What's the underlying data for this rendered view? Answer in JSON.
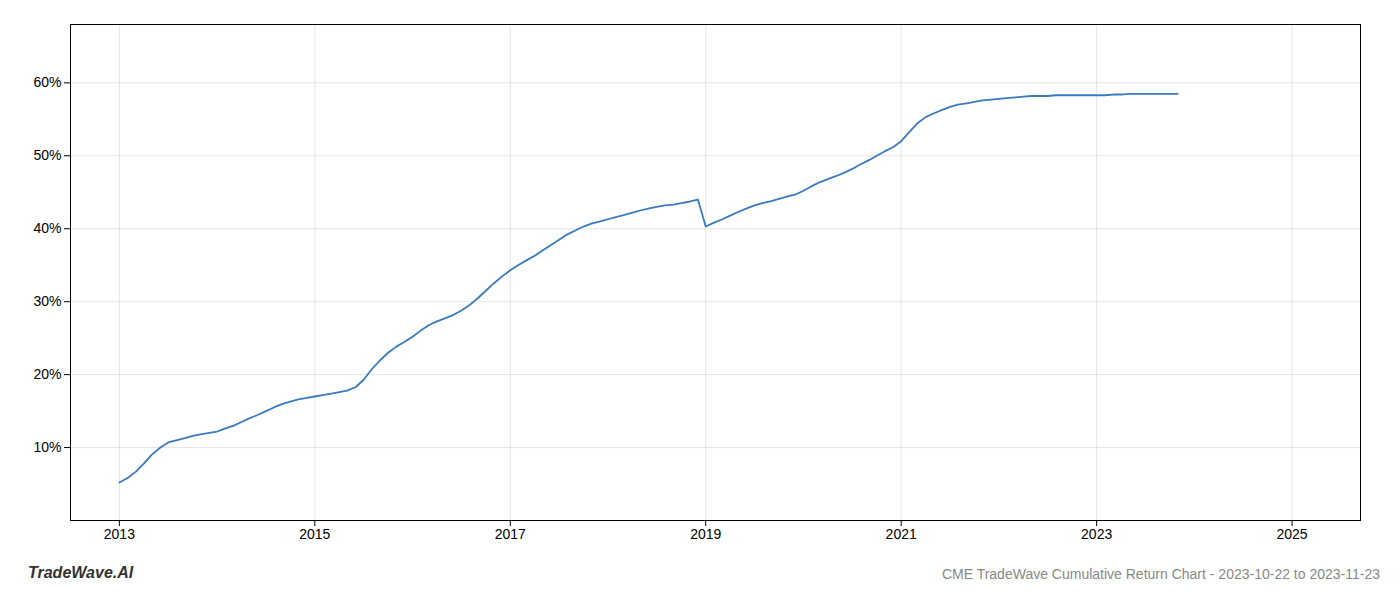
{
  "chart_data": {
    "type": "line",
    "title": "",
    "x": [
      2013.0,
      2013.08,
      2013.17,
      2013.25,
      2013.33,
      2013.42,
      2013.5,
      2013.58,
      2013.67,
      2013.75,
      2013.83,
      2013.92,
      2014.0,
      2014.08,
      2014.17,
      2014.25,
      2014.33,
      2014.42,
      2014.5,
      2014.58,
      2014.67,
      2014.75,
      2014.83,
      2014.92,
      2015.0,
      2015.08,
      2015.17,
      2015.25,
      2015.33,
      2015.42,
      2015.5,
      2015.58,
      2015.67,
      2015.75,
      2015.83,
      2015.92,
      2016.0,
      2016.08,
      2016.17,
      2016.25,
      2016.33,
      2016.42,
      2016.5,
      2016.58,
      2016.67,
      2016.75,
      2016.83,
      2016.92,
      2017.0,
      2017.08,
      2017.17,
      2017.25,
      2017.33,
      2017.42,
      2017.5,
      2017.58,
      2017.67,
      2017.75,
      2017.83,
      2017.92,
      2018.0,
      2018.08,
      2018.17,
      2018.25,
      2018.33,
      2018.42,
      2018.5,
      2018.58,
      2018.67,
      2018.75,
      2018.83,
      2018.92,
      2019.0,
      2019.08,
      2019.17,
      2019.25,
      2019.33,
      2019.42,
      2019.5,
      2019.58,
      2019.67,
      2019.75,
      2019.83,
      2019.92,
      2020.0,
      2020.08,
      2020.17,
      2020.25,
      2020.33,
      2020.42,
      2020.5,
      2020.58,
      2020.67,
      2020.75,
      2020.83,
      2020.92,
      2021.0,
      2021.08,
      2021.17,
      2021.25,
      2021.33,
      2021.42,
      2021.5,
      2021.58,
      2021.67,
      2021.75,
      2021.83,
      2021.92,
      2022.0,
      2022.08,
      2022.17,
      2022.25,
      2022.33,
      2022.42,
      2022.5,
      2022.58,
      2022.67,
      2022.75,
      2022.83,
      2022.92,
      2023.0,
      2023.08,
      2023.17,
      2023.25,
      2023.33,
      2023.42,
      2023.5,
      2023.58,
      2023.67,
      2023.75,
      2023.83
    ],
    "values": [
      0.052,
      0.058,
      0.067,
      0.078,
      0.09,
      0.1,
      0.107,
      0.11,
      0.113,
      0.116,
      0.118,
      0.12,
      0.122,
      0.126,
      0.13,
      0.135,
      0.14,
      0.145,
      0.15,
      0.155,
      0.16,
      0.163,
      0.166,
      0.168,
      0.17,
      0.172,
      0.174,
      0.176,
      0.178,
      0.183,
      0.193,
      0.207,
      0.22,
      0.23,
      0.238,
      0.245,
      0.252,
      0.26,
      0.268,
      0.273,
      0.277,
      0.282,
      0.288,
      0.295,
      0.305,
      0.315,
      0.325,
      0.335,
      0.343,
      0.35,
      0.357,
      0.363,
      0.37,
      0.378,
      0.385,
      0.392,
      0.398,
      0.403,
      0.407,
      0.41,
      0.413,
      0.416,
      0.419,
      0.422,
      0.425,
      0.428,
      0.43,
      0.432,
      0.433,
      0.435,
      0.437,
      0.44,
      0.403,
      0.408,
      0.413,
      0.418,
      0.423,
      0.428,
      0.432,
      0.435,
      0.438,
      0.441,
      0.444,
      0.447,
      0.452,
      0.458,
      0.464,
      0.468,
      0.472,
      0.477,
      0.482,
      0.488,
      0.494,
      0.5,
      0.506,
      0.512,
      0.52,
      0.532,
      0.545,
      0.553,
      0.558,
      0.563,
      0.567,
      0.57,
      0.572,
      0.574,
      0.576,
      0.577,
      0.578,
      0.579,
      0.58,
      0.581,
      0.582,
      0.582,
      0.582,
      0.583,
      0.583,
      0.583,
      0.583,
      0.583,
      0.583,
      0.583,
      0.584,
      0.584,
      0.585,
      0.585,
      0.585,
      0.585,
      0.585,
      0.585,
      0.585
    ],
    "color": "#3a7abf",
    "xlim": [
      2012.5,
      2025.7
    ],
    "xticks": [
      2013,
      2015,
      2017,
      2019,
      2021,
      2023,
      2025
    ],
    "ylim": [
      0.0,
      0.68
    ],
    "yticks": [
      {
        "value": 0.1,
        "label": "10%"
      },
      {
        "value": 0.2,
        "label": "20%"
      },
      {
        "value": 0.3,
        "label": "30%"
      },
      {
        "value": 0.4,
        "label": "40%"
      },
      {
        "value": 0.5,
        "label": "50%"
      },
      {
        "value": 0.6,
        "label": "60%"
      }
    ],
    "grid": true,
    "annotations": [
      "TradeWave.AI",
      "CME TradeWave Cumulative Return Chart - 2023-10-22 to 2023-11-23"
    ]
  }
}
